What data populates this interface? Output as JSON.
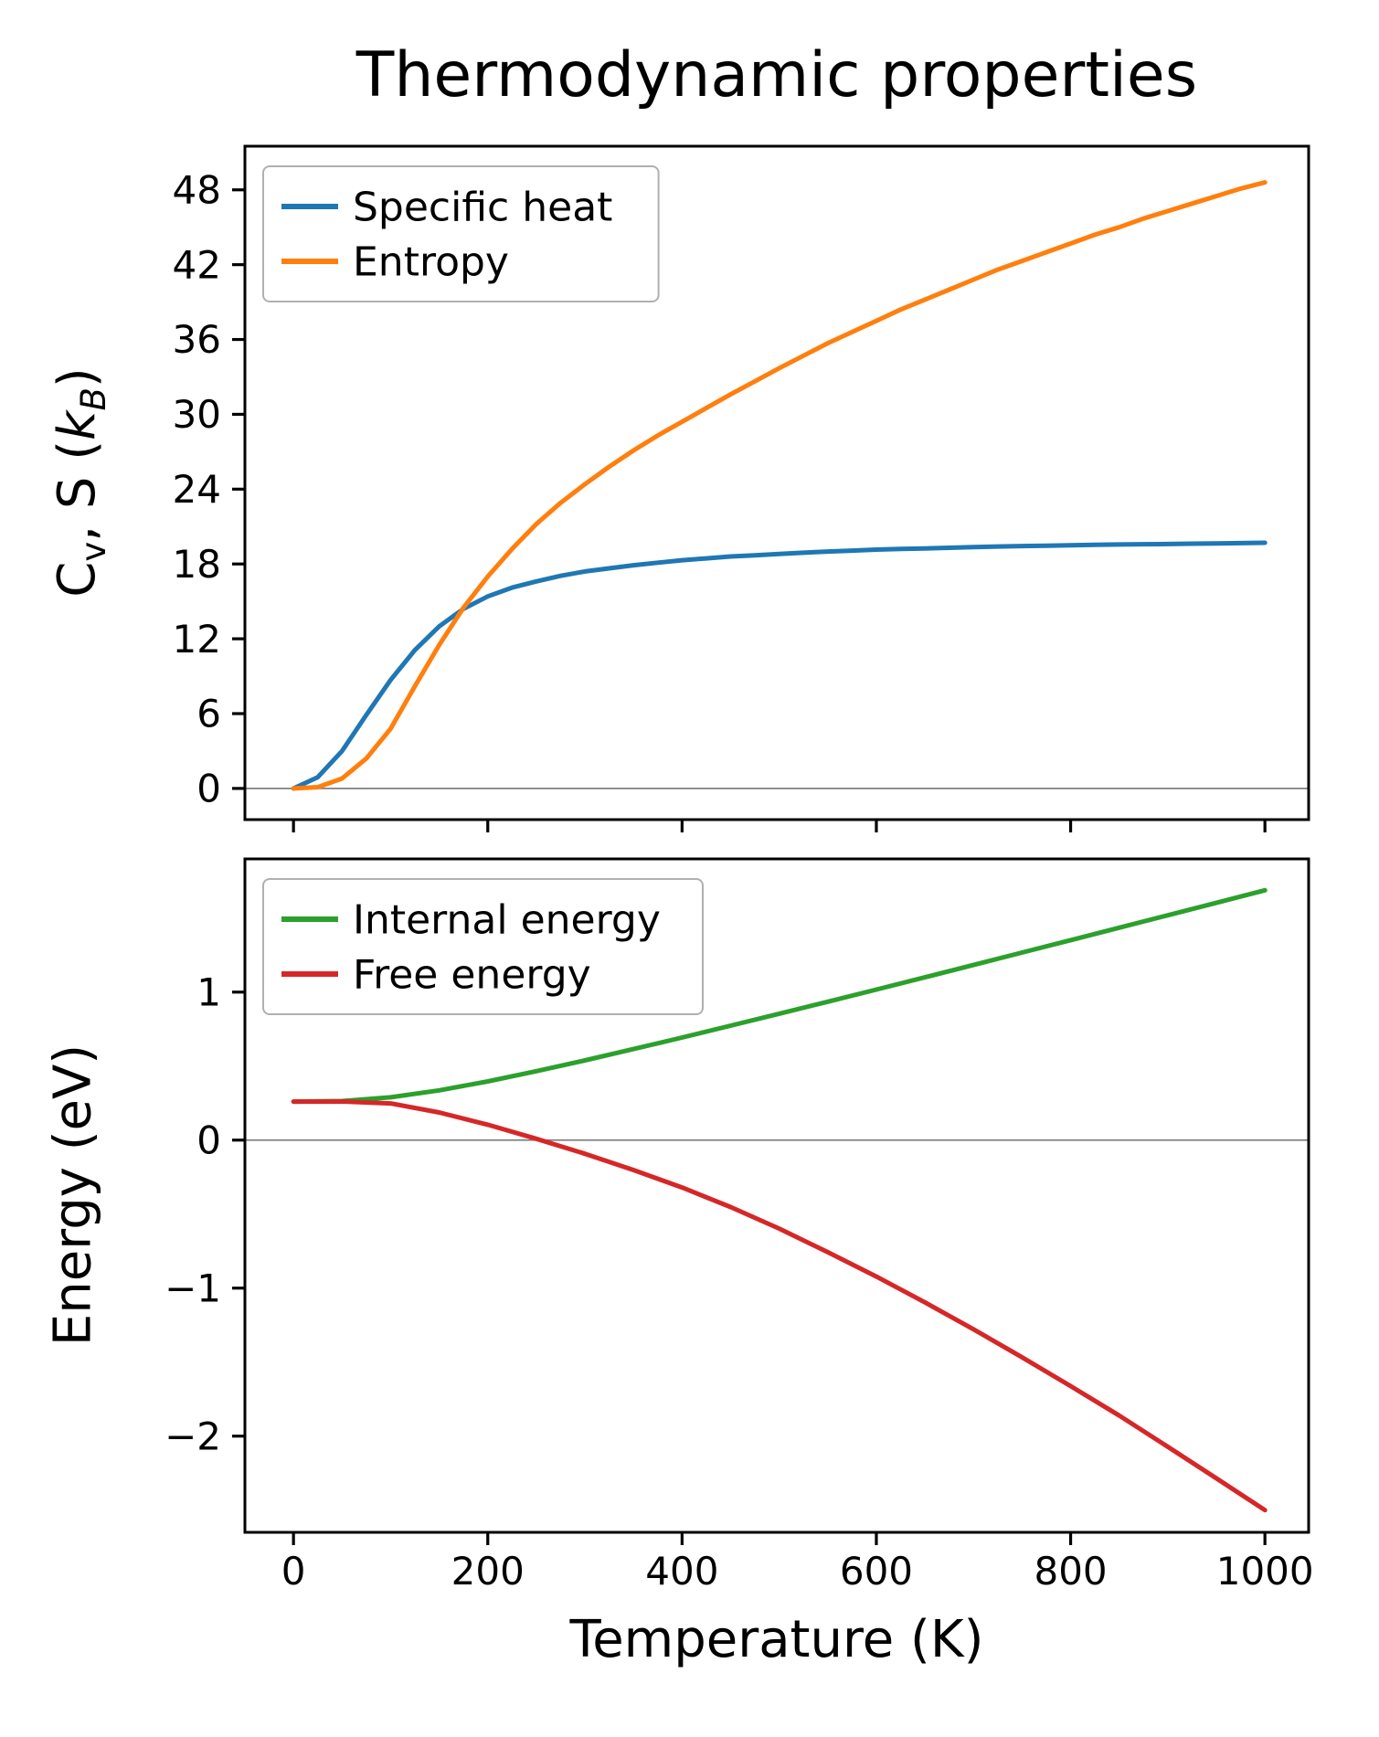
{
  "title": "Thermodynamic properties",
  "xlabel": "Temperature (K)",
  "ylabel_top_parts": {
    "c": "C",
    "c_sub": "v",
    "mid": ", S (",
    "k": "k",
    "k_sub": "B",
    "close": ")"
  },
  "ylabel_bottom": "Energy (eV)",
  "colors": {
    "axis": "#000000",
    "zero_line": "#808080",
    "legend_border": "#b0b0b0",
    "legend_background": "#ffffff",
    "specific_heat": "#1f77b4",
    "entropy": "#ff7f0e",
    "internal_energy": "#2ca02c",
    "free_energy": "#d62728"
  },
  "chart_data": [
    {
      "type": "line",
      "title": "Thermodynamic properties",
      "xlabel": "Temperature (K)",
      "ylabel": "Cv, S (kB)",
      "xlim": [
        -50,
        1045
      ],
      "ylim": [
        -2.5,
        51.5
      ],
      "xticks": [
        0,
        200,
        400,
        600,
        800,
        1000
      ],
      "yticks": [
        0,
        6,
        12,
        18,
        24,
        30,
        36,
        42,
        48
      ],
      "grid": false,
      "zero_line": true,
      "legend_position": "upper left",
      "x": [
        0,
        25,
        50,
        75,
        100,
        125,
        150,
        175,
        200,
        225,
        250,
        275,
        300,
        325,
        350,
        375,
        400,
        425,
        450,
        475,
        500,
        525,
        550,
        575,
        600,
        625,
        650,
        675,
        700,
        725,
        750,
        775,
        800,
        825,
        850,
        875,
        900,
        925,
        950,
        975,
        1000
      ],
      "series": [
        {
          "name": "Specific heat",
          "color": "#1f77b4",
          "values": [
            0,
            0.9,
            3.0,
            5.9,
            8.7,
            11.1,
            13.0,
            14.4,
            15.4,
            16.1,
            16.6,
            17.05,
            17.4,
            17.65,
            17.9,
            18.1,
            18.3,
            18.45,
            18.6,
            18.7,
            18.8,
            18.9,
            19.0,
            19.07,
            19.15,
            19.2,
            19.25,
            19.3,
            19.35,
            19.4,
            19.44,
            19.47,
            19.5,
            19.53,
            19.56,
            19.58,
            19.6,
            19.63,
            19.65,
            19.67,
            19.7
          ]
        },
        {
          "name": "Entropy",
          "color": "#ff7f0e",
          "values": [
            0,
            0.1,
            0.8,
            2.4,
            4.8,
            8.2,
            11.5,
            14.5,
            17.0,
            19.2,
            21.2,
            22.9,
            24.4,
            25.8,
            27.1,
            28.3,
            29.4,
            30.5,
            31.6,
            32.65,
            33.7,
            34.7,
            35.7,
            36.6,
            37.5,
            38.4,
            39.2,
            40.0,
            40.8,
            41.6,
            42.3,
            43.0,
            43.7,
            44.4,
            45.0,
            45.7,
            46.3,
            46.9,
            47.5,
            48.1,
            48.6
          ]
        }
      ]
    },
    {
      "type": "line",
      "xlabel": "Temperature (K)",
      "ylabel": "Energy (eV)",
      "xlim": [
        -50,
        1045
      ],
      "ylim": [
        -2.65,
        1.9
      ],
      "xticks": [
        0,
        200,
        400,
        600,
        800,
        1000
      ],
      "yticks": [
        -2,
        -1,
        0,
        1
      ],
      "grid": false,
      "zero_line": true,
      "legend_position": "upper left",
      "x": [
        0,
        50,
        100,
        150,
        200,
        250,
        300,
        350,
        400,
        450,
        500,
        550,
        600,
        650,
        700,
        750,
        800,
        850,
        900,
        950,
        1000
      ],
      "series": [
        {
          "name": "Internal energy",
          "color": "#2ca02c",
          "values": [
            0.26,
            0.264,
            0.289,
            0.336,
            0.397,
            0.466,
            0.539,
            0.615,
            0.693,
            0.773,
            0.854,
            0.935,
            1.017,
            1.1,
            1.183,
            1.267,
            1.351,
            1.435,
            1.519,
            1.603,
            1.688
          ]
        },
        {
          "name": "Free energy",
          "color": "#d62728",
          "values": [
            0.26,
            0.261,
            0.248,
            0.187,
            0.104,
            0.009,
            -0.092,
            -0.202,
            -0.32,
            -0.452,
            -0.598,
            -0.757,
            -0.922,
            -1.096,
            -1.278,
            -1.467,
            -1.662,
            -1.861,
            -2.072,
            -2.285,
            -2.5
          ]
        }
      ]
    }
  ]
}
